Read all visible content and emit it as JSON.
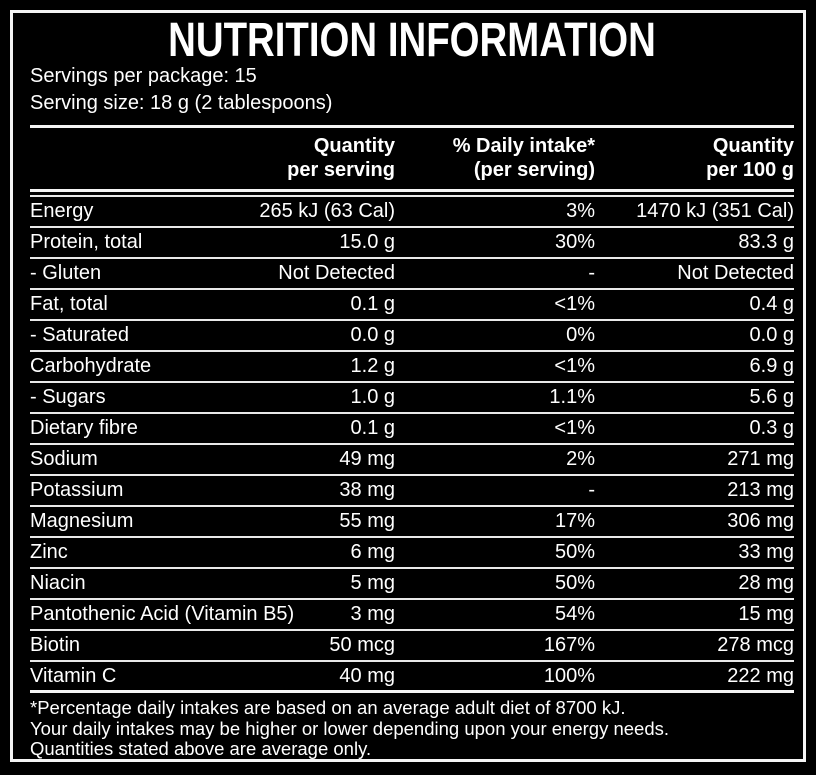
{
  "header": {
    "title": "NUTRITION INFORMATION",
    "servings_per_package": "Servings per package: 15",
    "serving_size": "Serving size: 18 g (2 tablespoons)"
  },
  "table": {
    "columns": [
      {
        "line1": "Quantity",
        "line2": "per serving"
      },
      {
        "line1": "% Daily intake*",
        "line2": "(per serving)"
      },
      {
        "line1": "Quantity",
        "line2": "per 100 g"
      }
    ],
    "rows": [
      {
        "label": "Energy",
        "per_serving": "265 kJ (63 Cal)",
        "daily_intake": "3%",
        "per_100g": "1470 kJ (351 Cal)"
      },
      {
        "label": "Protein, total",
        "per_serving": "15.0 g",
        "daily_intake": "30%",
        "per_100g": "83.3 g"
      },
      {
        "label": "- Gluten",
        "per_serving": "Not Detected",
        "daily_intake": "-",
        "per_100g": "Not Detected"
      },
      {
        "label": "Fat, total",
        "per_serving": "0.1 g",
        "daily_intake": "<1%",
        "per_100g": "0.4 g"
      },
      {
        "label": "- Saturated",
        "per_serving": "0.0 g",
        "daily_intake": "0%",
        "per_100g": "0.0 g"
      },
      {
        "label": "Carbohydrate",
        "per_serving": "1.2 g",
        "daily_intake": "<1%",
        "per_100g": "6.9 g"
      },
      {
        "label": "- Sugars",
        "per_serving": "1.0 g",
        "daily_intake": "1.1%",
        "per_100g": "5.6 g"
      },
      {
        "label": "Dietary fibre",
        "per_serving": "0.1 g",
        "daily_intake": "<1%",
        "per_100g": "0.3 g"
      },
      {
        "label": "Sodium",
        "per_serving": "49 mg",
        "daily_intake": "2%",
        "per_100g": "271 mg"
      },
      {
        "label": "Potassium",
        "per_serving": "38 mg",
        "daily_intake": "-",
        "per_100g": "213 mg"
      },
      {
        "label": "Magnesium",
        "per_serving": "55 mg",
        "daily_intake": "17%",
        "per_100g": "306 mg"
      },
      {
        "label": "Zinc",
        "per_serving": "6 mg",
        "daily_intake": "50%",
        "per_100g": "33 mg"
      },
      {
        "label": "Niacin",
        "per_serving": "5 mg",
        "daily_intake": "50%",
        "per_100g": "28 mg"
      },
      {
        "label": "Pantothenic Acid (Vitamin B5)",
        "per_serving": "3 mg",
        "daily_intake": "54%",
        "per_100g": "15 mg"
      },
      {
        "label": "Biotin",
        "per_serving": "50 mcg",
        "daily_intake": "167%",
        "per_100g": "278 mcg"
      },
      {
        "label": "Vitamin C",
        "per_serving": "40 mg",
        "daily_intake": "100%",
        "per_100g": "222 mg"
      }
    ]
  },
  "footnotes": [
    "*Percentage daily intakes are based on an average adult diet of 8700 kJ.",
    "Your daily intakes may be higher or lower depending upon your energy needs.",
    "Quantities stated above are average only."
  ],
  "colors": {
    "background": "#000000",
    "text": "#ffffff",
    "border": "#f4f4f4"
  }
}
